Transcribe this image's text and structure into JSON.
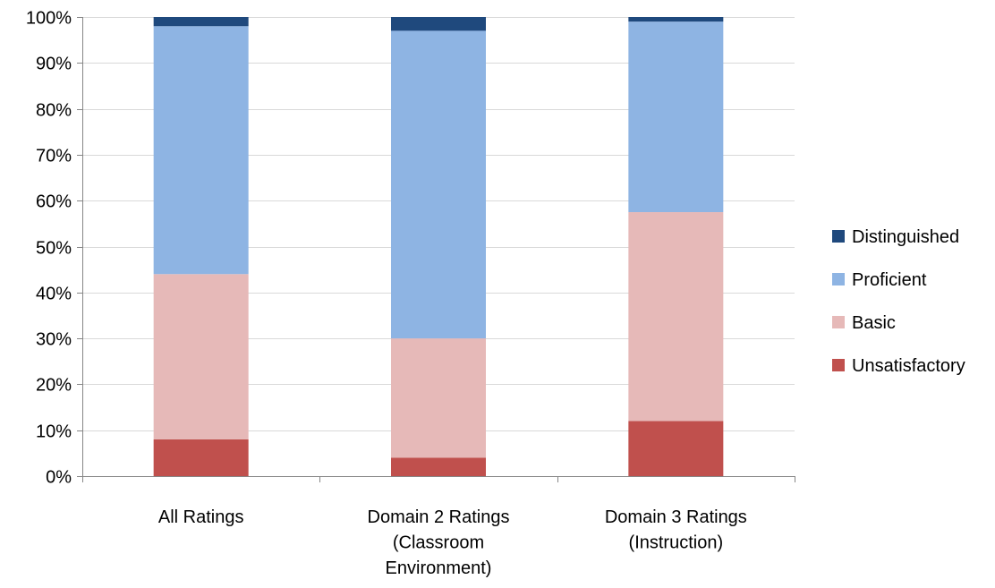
{
  "chart_data": {
    "type": "bar",
    "stacked": true,
    "percent_stacked": true,
    "categories": [
      [
        "All Ratings"
      ],
      [
        "Domain 2 Ratings",
        "(Classroom",
        "Environment)"
      ],
      [
        "Domain 3 Ratings",
        "(Instruction)"
      ]
    ],
    "series": [
      {
        "name": "Unsatisfactory",
        "color": "#c0504d",
        "values": [
          8,
          4,
          12
        ]
      },
      {
        "name": "Basic",
        "color": "#e6b9b8",
        "values": [
          36,
          26,
          45.5
        ]
      },
      {
        "name": "Proficient",
        "color": "#8eb4e3",
        "values": [
          54,
          67,
          41.5
        ]
      },
      {
        "name": "Distinguished",
        "color": "#1f497d",
        "values": [
          2,
          3,
          1
        ]
      }
    ],
    "ylim": [
      0,
      100
    ],
    "yticks": [
      0,
      10,
      20,
      30,
      40,
      50,
      60,
      70,
      80,
      90,
      100
    ],
    "ytick_labels": [
      "0%",
      "10%",
      "20%",
      "30%",
      "40%",
      "50%",
      "60%",
      "70%",
      "80%",
      "90%",
      "100%"
    ],
    "title": "",
    "xlabel": "",
    "ylabel": "",
    "grid": true,
    "legend_placement": "right",
    "legend_order": [
      "Distinguished",
      "Proficient",
      "Basic",
      "Unsatisfactory"
    ]
  }
}
